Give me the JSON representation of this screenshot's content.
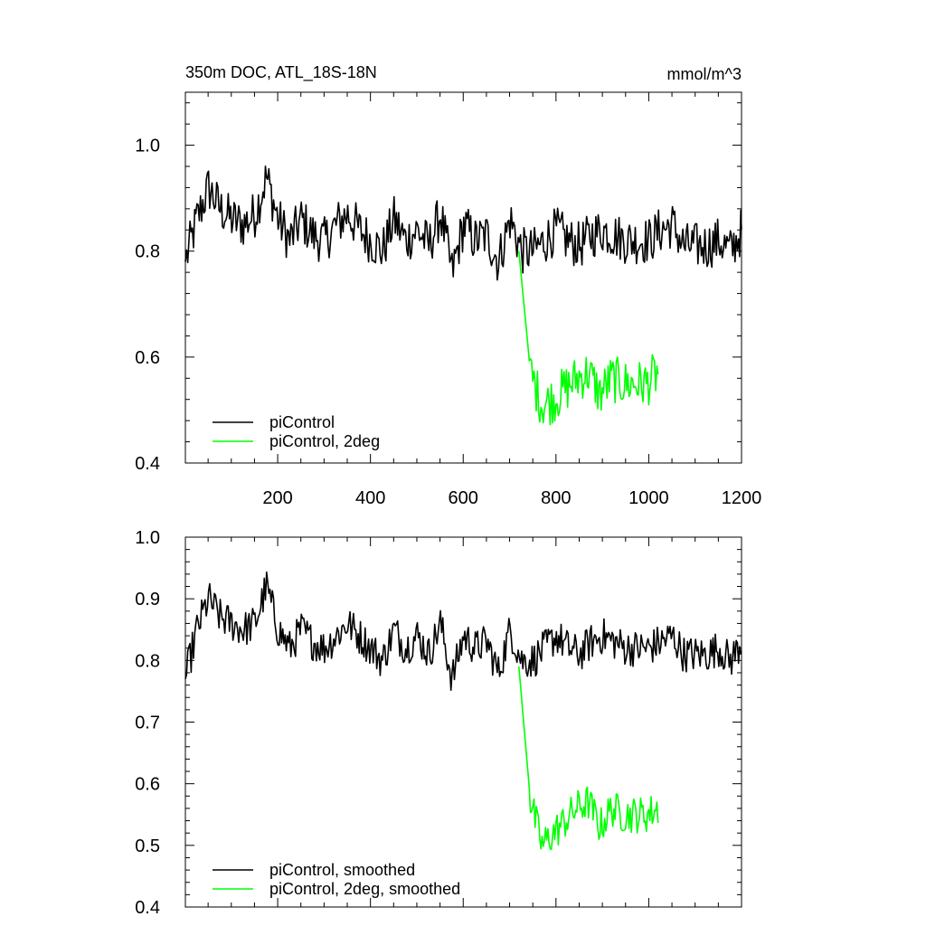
{
  "chart_data": [
    {
      "type": "line",
      "title": "350m DOC, ATL_18S-18N",
      "units": "mmol/m^3",
      "xlabel": "",
      "ylabel": "",
      "xlim": [
        1,
        1200
      ],
      "ylim": [
        0.4,
        1.1
      ],
      "xticks": [
        200,
        400,
        600,
        800,
        1000,
        1200
      ],
      "yticks": [
        0.4,
        0.6,
        0.8,
        1.0
      ],
      "ytick_labels": [
        "0.4",
        "0.6",
        "0.8",
        "1.0"
      ],
      "legend_position": "bottom-left",
      "series": [
        {
          "name": "piControl",
          "color": "#000000",
          "x_start": 1,
          "x_step": 25,
          "values": [
            0.78,
            0.86,
            0.92,
            0.88,
            0.86,
            0.85,
            0.87,
            0.94,
            0.86,
            0.82,
            0.86,
            0.83,
            0.82,
            0.85,
            0.87,
            0.84,
            0.82,
            0.8,
            0.86,
            0.82,
            0.84,
            0.81,
            0.87,
            0.76,
            0.85,
            0.82,
            0.83,
            0.78,
            0.86,
            0.8,
            0.8,
            0.82,
            0.84,
            0.82,
            0.81,
            0.83,
            0.84,
            0.83,
            0.82,
            0.82,
            0.82,
            0.84,
            0.85,
            0.81,
            0.81,
            0.81,
            0.82,
            0.8,
            0.84
          ]
        },
        {
          "name": "piControl, 2deg",
          "color": "#00ff00",
          "x_start": 720,
          "x_step": 25,
          "values": [
            0.8,
            0.57,
            0.51,
            0.52,
            0.54,
            0.56,
            0.57,
            0.53,
            0.56,
            0.55,
            0.55,
            0.55,
            0.57
          ]
        }
      ]
    },
    {
      "type": "line",
      "title": "",
      "xlabel": "",
      "ylabel": "",
      "xlim": [
        1,
        1200
      ],
      "ylim": [
        0.4,
        1.0
      ],
      "xticks": [
        200,
        400,
        600,
        800,
        1000,
        1200
      ],
      "yticks": [
        0.4,
        0.5,
        0.6,
        0.7,
        0.8,
        0.9,
        1.0
      ],
      "ytick_labels": [
        "0.4",
        "0.5",
        "0.6",
        "0.7",
        "0.8",
        "0.9",
        "1.0"
      ],
      "legend_position": "bottom-left",
      "series": [
        {
          "name": "piControl, smoothed",
          "color": "#000000",
          "x_start": 1,
          "x_step": 25,
          "values": [
            0.77,
            0.85,
            0.9,
            0.87,
            0.86,
            0.85,
            0.86,
            0.92,
            0.85,
            0.82,
            0.85,
            0.83,
            0.82,
            0.84,
            0.86,
            0.84,
            0.82,
            0.8,
            0.85,
            0.82,
            0.84,
            0.81,
            0.86,
            0.77,
            0.84,
            0.82,
            0.83,
            0.78,
            0.85,
            0.8,
            0.8,
            0.82,
            0.84,
            0.82,
            0.81,
            0.83,
            0.84,
            0.83,
            0.82,
            0.82,
            0.82,
            0.83,
            0.84,
            0.81,
            0.81,
            0.81,
            0.82,
            0.8,
            0.83
          ]
        },
        {
          "name": "piControl, 2deg, smoothed",
          "color": "#00ff00",
          "x_start": 720,
          "x_step": 25,
          "values": [
            0.79,
            0.57,
            0.5,
            0.52,
            0.54,
            0.56,
            0.57,
            0.53,
            0.56,
            0.55,
            0.55,
            0.55,
            0.56
          ]
        }
      ]
    }
  ]
}
